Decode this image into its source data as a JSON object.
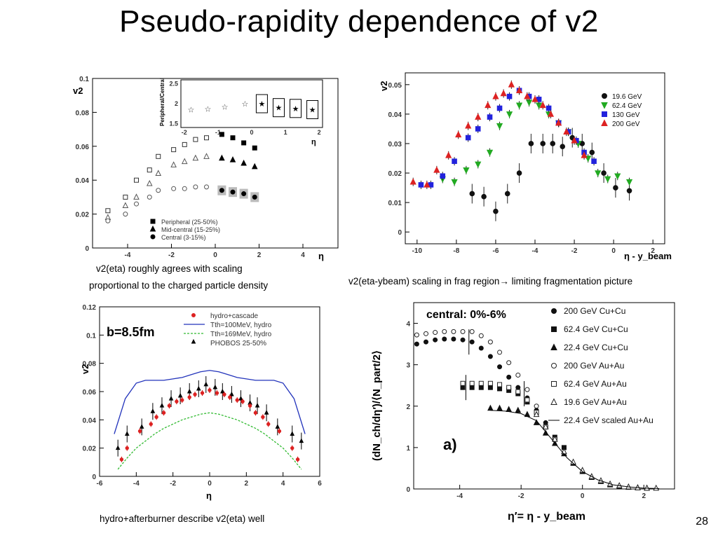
{
  "slide": {
    "title": "Pseudo-rapidity dependence of v2",
    "caption_tl_1": "v2(eta) roughly  agrees with scaling",
    "caption_tl_2": "proportional to the charged particle density",
    "caption_tr": "v2(eta-ybeam) scaling in frag region",
    "caption_tr_arrow": "→",
    "caption_tr_2": " limiting fragmentation picture",
    "caption_bl": "hydro+afterburner describe v2(eta) well",
    "page_number": "28"
  },
  "colors": {
    "red": "#dd2222",
    "green": "#22aa22",
    "blue": "#2222dd",
    "black": "#111111"
  },
  "chart_data": [
    {
      "id": "tl",
      "type": "scatter",
      "xlabel": "η",
      "ylabel": "v2",
      "xlim": [
        -5.6,
        5.6
      ],
      "ylim": [
        0,
        0.1
      ],
      "xticks": [
        "-4",
        "-2",
        "0",
        "2",
        "4"
      ],
      "yticks": [
        "0",
        "0.02",
        "0.04",
        "0.06",
        "0.08",
        "0.1"
      ],
      "legend": [
        "Peripheral (25-50%)",
        "Mid-central (15-25%)",
        "Central (3-15%)"
      ],
      "series": [
        {
          "name": "Peripheral (25-50%)",
          "x": [
            -4.9,
            -4.1,
            -3.6,
            -3.0,
            -2.6,
            -1.9,
            -1.4,
            -0.9,
            -0.4,
            0.3,
            0.8,
            1.3,
            1.8
          ],
          "y": [
            0.022,
            0.03,
            0.04,
            0.046,
            0.054,
            0.058,
            0.061,
            0.064,
            0.065,
            0.067,
            0.065,
            0.062,
            0.059
          ]
        },
        {
          "name": "Mid-central (15-25%)",
          "x": [
            -4.9,
            -4.1,
            -3.6,
            -3.0,
            -2.6,
            -1.9,
            -1.4,
            -0.9,
            -0.4,
            0.3,
            0.8,
            1.3,
            1.8
          ],
          "y": [
            0.018,
            0.025,
            0.03,
            0.038,
            0.044,
            0.049,
            0.051,
            0.053,
            0.054,
            0.053,
            0.052,
            0.05,
            0.048
          ]
        },
        {
          "name": "Central (3-15%)",
          "x": [
            -4.9,
            -4.1,
            -3.6,
            -3.0,
            -2.6,
            -1.9,
            -1.4,
            -0.9,
            -0.4,
            0.3,
            0.8,
            1.3,
            1.8
          ],
          "y": [
            0.016,
            0.02,
            0.026,
            0.03,
            0.034,
            0.035,
            0.035,
            0.036,
            0.036,
            0.034,
            0.033,
            0.032,
            0.03
          ]
        }
      ],
      "inset": {
        "xlabel": "η",
        "ylabel": "Peripheral/Central",
        "xticks": [
          "-2",
          "-1",
          "0",
          "1",
          "2"
        ],
        "yticks": [
          "1.5",
          "2",
          "2.5"
        ],
        "x": [
          -1.8,
          -1.3,
          -0.8,
          -0.2,
          0.3,
          0.8,
          1.3,
          1.8
        ],
        "y": [
          1.85,
          1.87,
          1.92,
          2.0,
          2.0,
          1.9,
          1.88,
          1.85
        ]
      }
    },
    {
      "id": "tr",
      "type": "scatter",
      "xlabel": "η - y_beam",
      "ylabel": "v2",
      "xlim": [
        -10.6,
        2.6
      ],
      "ylim": [
        -0.004,
        0.054
      ],
      "xticks": [
        "-10",
        "-8",
        "-6",
        "-4",
        "-2",
        "0",
        "2"
      ],
      "yticks": [
        "0",
        "0.01",
        "0.02",
        "0.03",
        "0.04",
        "0.05"
      ],
      "legend": [
        "19.6 GeV",
        "62.4 GeV",
        "130 GeV",
        "200 GeV"
      ],
      "series": [
        {
          "name": "19.6 GeV",
          "x": [
            -7.2,
            -6.6,
            -6.0,
            -5.4,
            -4.8,
            -4.2,
            -3.6,
            -3.1,
            -2.6,
            -2.1,
            -1.6,
            -1.1,
            -0.5,
            0.1,
            0.8
          ],
          "y": [
            0.013,
            0.012,
            0.007,
            0.013,
            0.02,
            0.03,
            0.03,
            0.03,
            0.029,
            0.032,
            0.03,
            0.027,
            0.02,
            0.015,
            0.014
          ]
        },
        {
          "name": "62.4 GeV",
          "x": [
            -8.7,
            -8.1,
            -7.5,
            -6.9,
            -6.3,
            -5.8,
            -5.3,
            -4.8,
            -4.3,
            -3.8,
            -3.3,
            -2.8,
            -2.3,
            -1.8,
            -1.3,
            -0.8,
            -0.3,
            0.2,
            0.8
          ],
          "y": [
            0.018,
            0.017,
            0.021,
            0.023,
            0.027,
            0.036,
            0.04,
            0.043,
            0.044,
            0.043,
            0.04,
            0.037,
            0.034,
            0.03,
            0.025,
            0.02,
            0.018,
            0.019,
            0.017
          ]
        },
        {
          "name": "130 GeV",
          "x": [
            -9.8,
            -9.3,
            -8.7,
            -8.1,
            -7.4,
            -6.9,
            -6.3,
            -5.8,
            -5.3,
            -4.8,
            -4.3,
            -3.8,
            -3.3,
            -2.8,
            -2.3,
            -1.9,
            -1.5,
            -1.0
          ],
          "y": [
            0.016,
            0.016,
            0.019,
            0.024,
            0.032,
            0.035,
            0.039,
            0.042,
            0.046,
            0.048,
            0.046,
            0.045,
            0.042,
            0.037,
            0.034,
            0.031,
            0.027,
            0.024
          ]
        },
        {
          "name": "200 GeV",
          "x": [
            -10.2,
            -9.5,
            -9.0,
            -8.4,
            -7.9,
            -7.4,
            -6.9,
            -6.4,
            -6.0,
            -5.6,
            -5.2,
            -4.8,
            -4.4,
            -4.0,
            -3.6,
            -3.2,
            -2.8,
            -2.4,
            -2.0,
            -1.5
          ],
          "y": [
            0.017,
            0.016,
            0.021,
            0.026,
            0.033,
            0.036,
            0.039,
            0.043,
            0.046,
            0.047,
            0.05,
            0.048,
            0.046,
            0.045,
            0.043,
            0.04,
            0.037,
            0.034,
            0.031,
            0.026
          ]
        }
      ]
    },
    {
      "id": "bl",
      "type": "line",
      "title": "b=8.5fm",
      "xlabel": "η",
      "ylabel": "v2",
      "xlim": [
        -6,
        6
      ],
      "ylim": [
        0,
        0.12
      ],
      "xticks": [
        "-6",
        "-4",
        "-2",
        "0",
        "2",
        "4",
        "6"
      ],
      "yticks": [
        "0",
        "0.02",
        "0.04",
        "0.06",
        "0.08",
        "0.1",
        "0.12"
      ],
      "legend": [
        "hydro+cascade",
        "Tth=100MeV, hydro",
        "Tth=169MeV, hydro",
        "PHOBOS 25-50%"
      ],
      "series": [
        {
          "name": "hydro+cascade",
          "x": [
            -4.8,
            -4.5,
            -3.8,
            -3.2,
            -2.9,
            -2.5,
            -2.2,
            -1.8,
            -1.5,
            -1.1,
            -0.8,
            -0.4,
            0,
            0.4,
            0.8,
            1.1,
            1.5,
            1.8,
            2.2,
            2.5,
            2.9,
            3.2,
            3.8,
            4.5,
            4.8
          ],
          "y": [
            0.012,
            0.02,
            0.032,
            0.037,
            0.042,
            0.045,
            0.05,
            0.053,
            0.054,
            0.056,
            0.058,
            0.059,
            0.061,
            0.059,
            0.058,
            0.056,
            0.054,
            0.053,
            0.05,
            0.045,
            0.042,
            0.037,
            0.032,
            0.02,
            0.012
          ]
        },
        {
          "name": "Tth=100MeV, hydro",
          "x": [
            -5.2,
            -4.6,
            -4.0,
            -3.5,
            -3.0,
            -2.5,
            -2.0,
            -1.5,
            -1.0,
            -0.5,
            0,
            0.5,
            1.0,
            1.5,
            2.0,
            2.5,
            3.0,
            3.5,
            4.0,
            4.6,
            5.2
          ],
          "y": [
            0.03,
            0.055,
            0.066,
            0.068,
            0.068,
            0.068,
            0.069,
            0.07,
            0.072,
            0.074,
            0.075,
            0.074,
            0.072,
            0.07,
            0.069,
            0.068,
            0.068,
            0.068,
            0.066,
            0.055,
            0.03
          ]
        },
        {
          "name": "Tth=169MeV, hydro",
          "x": [
            -5.0,
            -4.5,
            -4.0,
            -3.5,
            -3.0,
            -2.5,
            -2.0,
            -1.5,
            -1.0,
            -0.5,
            0,
            0.5,
            1.0,
            1.5,
            2.0,
            2.5,
            3.0,
            3.5,
            4.0,
            4.5,
            5.0
          ],
          "y": [
            0.005,
            0.013,
            0.02,
            0.025,
            0.03,
            0.034,
            0.037,
            0.04,
            0.042,
            0.044,
            0.045,
            0.044,
            0.042,
            0.04,
            0.037,
            0.034,
            0.03,
            0.025,
            0.02,
            0.013,
            0.005
          ]
        },
        {
          "name": "PHOBOS 25-50%",
          "x": [
            -5.0,
            -4.5,
            -3.7,
            -3.1,
            -2.6,
            -2.1,
            -1.6,
            -1.1,
            -0.6,
            -0.2,
            0.3,
            0.7,
            1.2,
            1.7,
            2.2,
            2.6,
            3.1,
            3.7,
            4.5,
            5.0
          ],
          "y": [
            0.02,
            0.03,
            0.035,
            0.046,
            0.05,
            0.055,
            0.057,
            0.06,
            0.062,
            0.065,
            0.063,
            0.06,
            0.058,
            0.055,
            0.052,
            0.05,
            0.045,
            0.035,
            0.03,
            0.025
          ]
        }
      ]
    },
    {
      "id": "br",
      "type": "scatter",
      "title": "central: 0%-6%",
      "annotation": "a)",
      "xlabel": "η′= η - y_beam",
      "ylabel": "(dN_ch/dη′)/⟨N_part/2⟩",
      "xlim": [
        -5.5,
        3.0
      ],
      "ylim": [
        0,
        4.5
      ],
      "xticks": [
        "-4",
        "-2",
        "0",
        "2"
      ],
      "yticks": [
        "0",
        "1",
        "2",
        "3",
        "4"
      ],
      "legend": [
        "200 GeV Cu+Cu",
        "62.4 GeV Cu+Cu",
        "22.4 GeV Cu+Cu",
        "200 GeV Au+Au",
        "62.4 GeV Au+Au",
        "19.6 GeV Au+Au",
        "22.4 GeV scaled Au+Au"
      ],
      "series": [
        {
          "name": "200 GeV Cu+Cu",
          "x": [
            -5.4,
            -5.1,
            -4.8,
            -4.5,
            -4.2,
            -3.9,
            -3.6,
            -3.3,
            -3.0,
            -2.7,
            -2.4,
            -2.1,
            -1.8,
            -1.5,
            -1.2
          ],
          "y": [
            3.5,
            3.55,
            3.6,
            3.62,
            3.62,
            3.6,
            3.55,
            3.4,
            3.2,
            2.95,
            2.7,
            2.45,
            2.2,
            1.9,
            1.6
          ]
        },
        {
          "name": "62.4 GeV Cu+Cu",
          "x": [
            -3.9,
            -3.6,
            -3.3,
            -3.0,
            -2.7,
            -2.4,
            -2.1,
            -1.8,
            -1.5,
            -1.2,
            -0.9,
            -0.6
          ],
          "y": [
            2.45,
            2.45,
            2.45,
            2.45,
            2.42,
            2.38,
            2.3,
            2.1,
            1.85,
            1.5,
            1.25,
            1.0
          ]
        },
        {
          "name": "22.4 GeV Cu+Cu",
          "x": [
            -3.0,
            -2.7,
            -2.4,
            -2.1,
            -1.8,
            -1.5,
            -1.2,
            -0.9,
            -0.6,
            -0.3,
            0,
            0.3,
            0.6,
            0.9,
            1.2,
            1.5,
            1.8,
            2.1
          ],
          "y": [
            1.95,
            1.95,
            1.92,
            1.9,
            1.8,
            1.6,
            1.35,
            1.1,
            0.85,
            0.62,
            0.42,
            0.28,
            0.18,
            0.1,
            0.06,
            0.04,
            0.03,
            0.02
          ]
        },
        {
          "name": "200 GeV Au+Au",
          "x": [
            -5.4,
            -5.1,
            -4.8,
            -4.5,
            -4.2,
            -3.9,
            -3.6,
            -3.3,
            -3.0,
            -2.7,
            -2.4,
            -2.1,
            -1.8,
            -1.5
          ],
          "y": [
            3.72,
            3.75,
            3.78,
            3.8,
            3.8,
            3.8,
            3.8,
            3.7,
            3.55,
            3.3,
            3.05,
            2.75,
            2.4,
            2.0
          ]
        },
        {
          "name": "62.4 GeV Au+Au",
          "x": [
            -3.9,
            -3.6,
            -3.3,
            -3.0,
            -2.7,
            -2.4,
            -2.1,
            -1.8,
            -1.5,
            -1.2,
            -0.9
          ],
          "y": [
            2.55,
            2.55,
            2.55,
            2.55,
            2.52,
            2.45,
            2.35,
            2.15,
            1.85,
            1.5,
            1.2
          ]
        },
        {
          "name": "19.6 GeV Au+Au",
          "x": [
            -1.5,
            -1.2,
            -0.9,
            -0.6,
            -0.3,
            0,
            0.3,
            0.6,
            0.9,
            1.2,
            1.5,
            1.8,
            2.1,
            2.4
          ],
          "y": [
            1.8,
            1.5,
            1.2,
            0.9,
            0.65,
            0.45,
            0.3,
            0.2,
            0.12,
            0.08,
            0.05,
            0.03,
            0.02,
            0.02
          ]
        },
        {
          "name": "22.4 GeV scaled Au+Au",
          "x": [
            -3.0,
            -2.5,
            -2.0,
            -1.5,
            -1.0,
            -0.5,
            0,
            0.5,
            1.0,
            1.5,
            2.0,
            2.5
          ],
          "y": [
            1.9,
            1.88,
            1.82,
            1.65,
            1.2,
            0.75,
            0.42,
            0.22,
            0.1,
            0.05,
            0.02,
            0.01
          ]
        }
      ]
    }
  ]
}
